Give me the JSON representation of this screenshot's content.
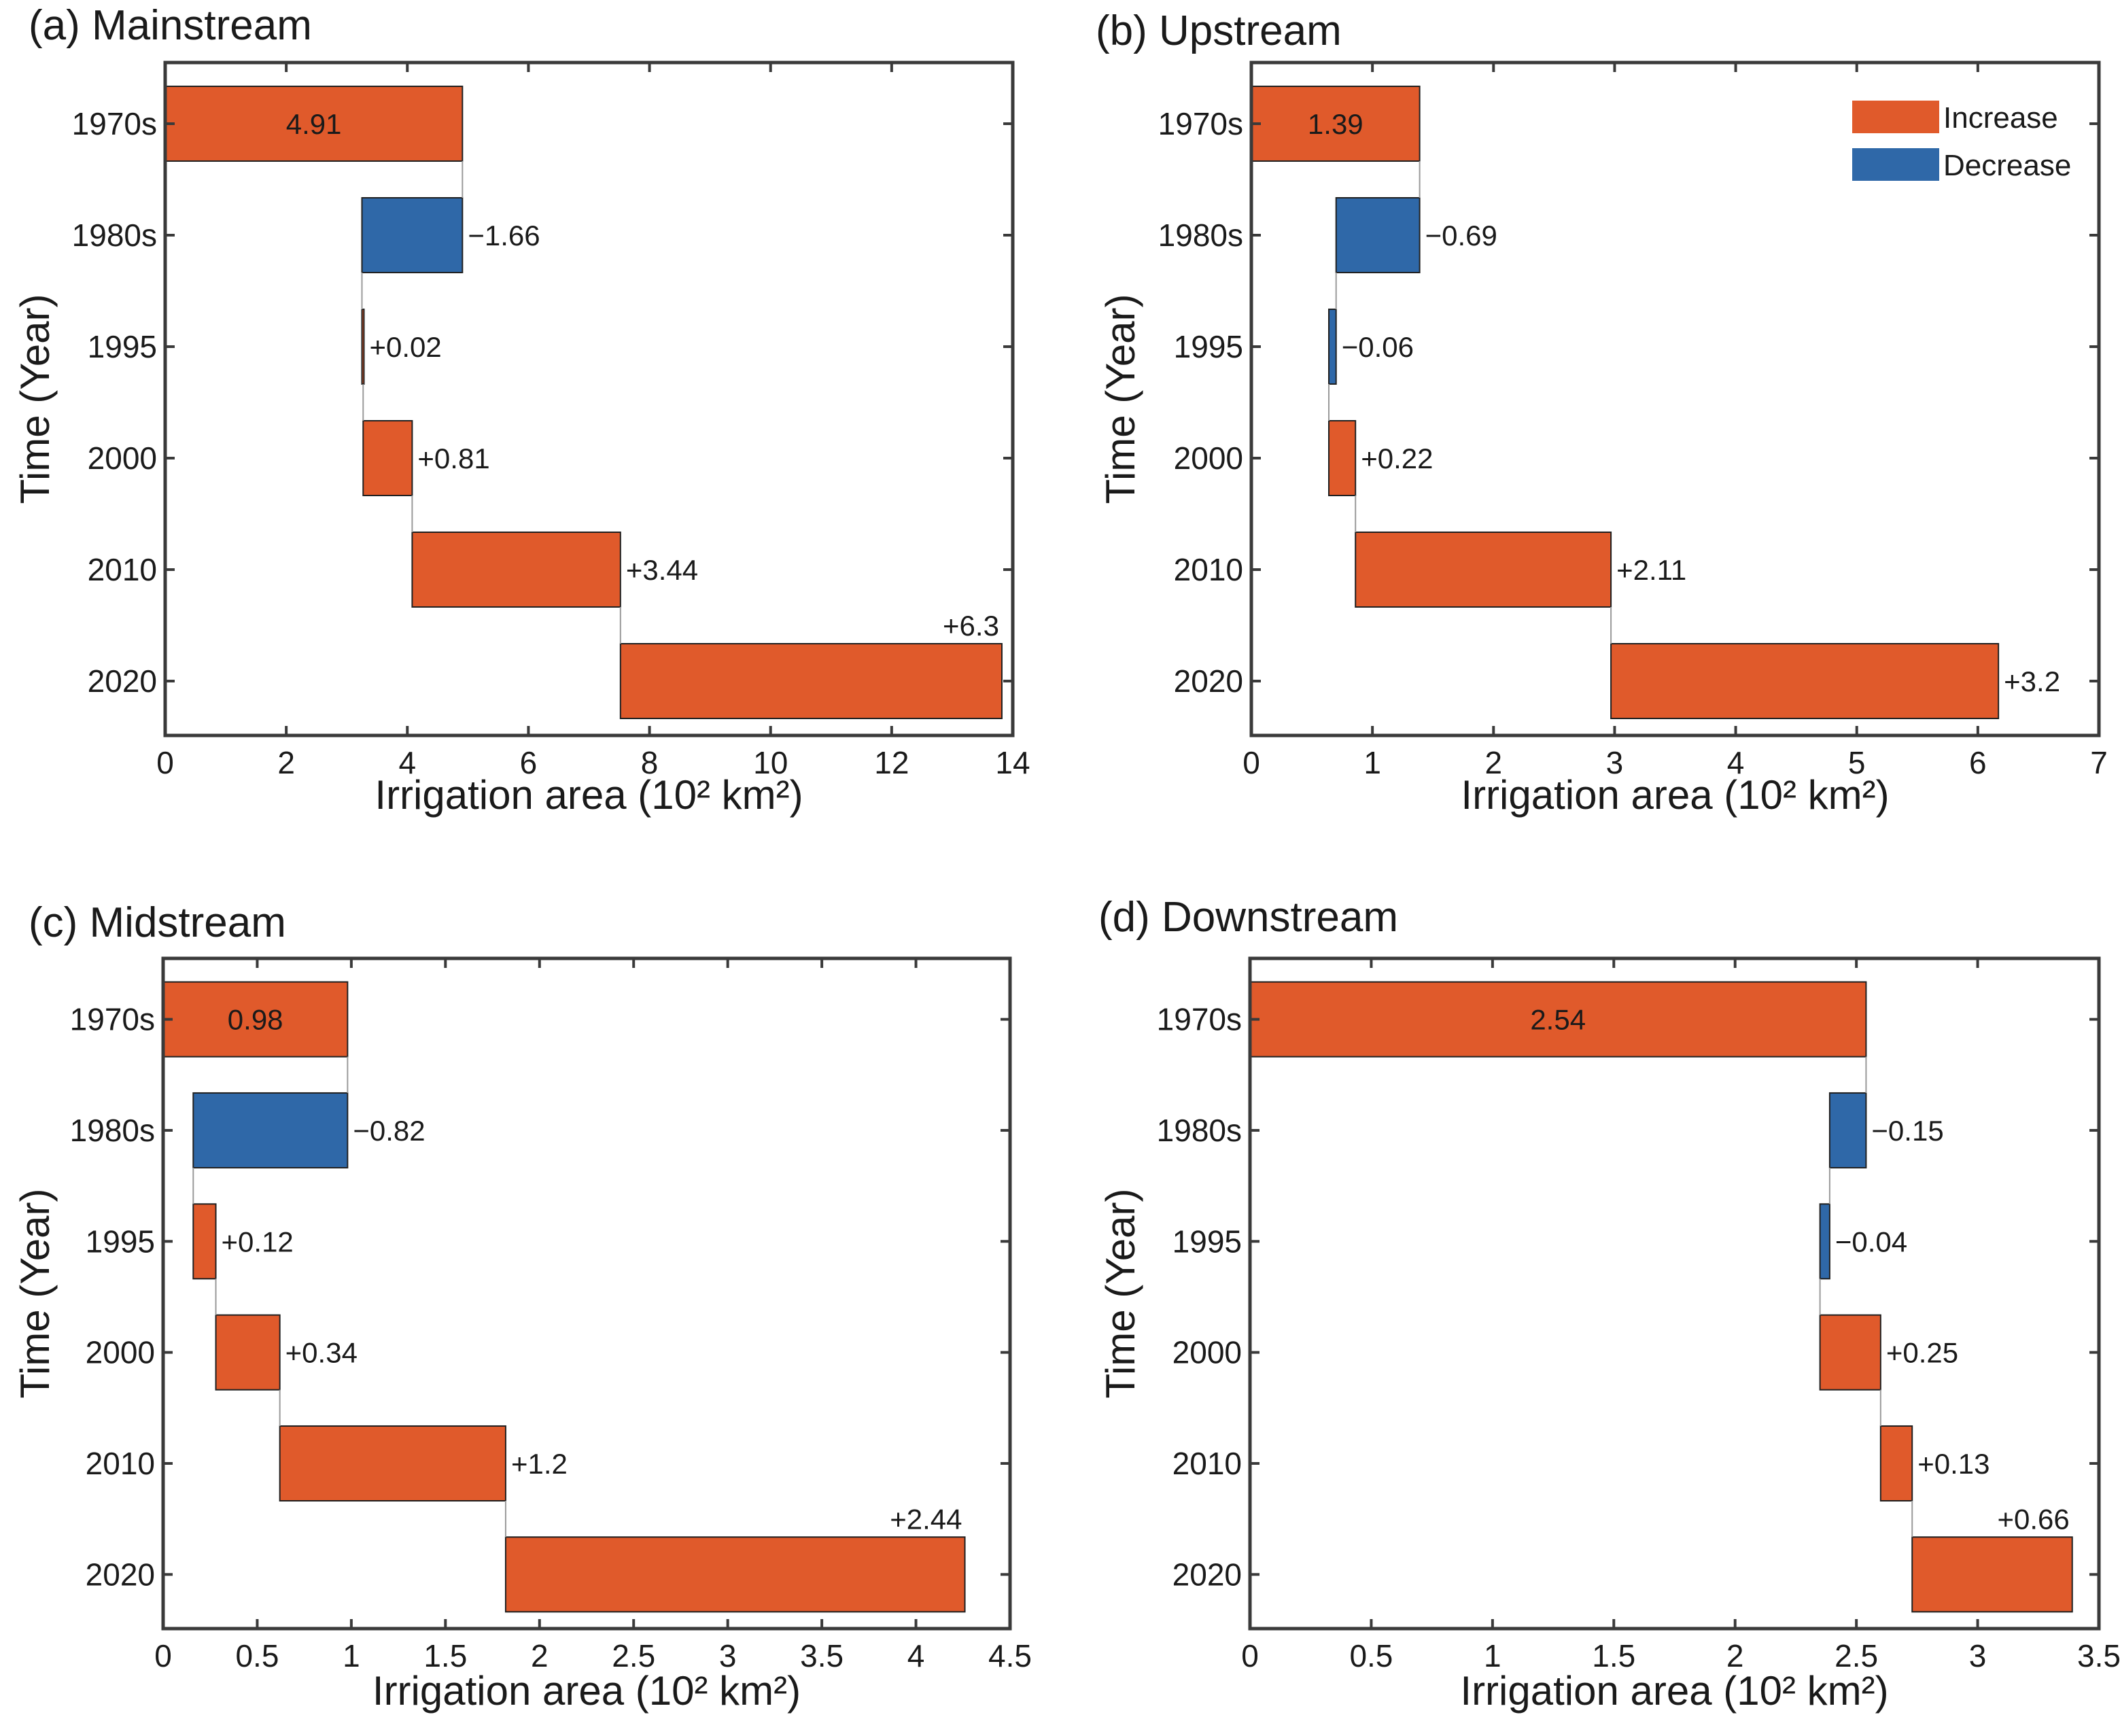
{
  "legend": {
    "items": [
      {
        "label": "Increase",
        "color": "#E05A2B"
      },
      {
        "label": "Decrease",
        "color": "#2F68A8"
      }
    ]
  },
  "chart_data": [
    {
      "type": "bar",
      "variant": "waterfall-horizontal",
      "title": "(a) Mainstream",
      "xlabel": "Irrigation area (10² km²)",
      "ylabel": "Time (Year)",
      "categories": [
        "1970s",
        "1980s",
        "1995",
        "2000",
        "2010",
        "2020"
      ],
      "values": [
        4.91,
        -1.66,
        0.02,
        0.81,
        3.44,
        6.3
      ],
      "value_labels": [
        "4.91",
        "−1.66",
        "+0.02",
        "+0.81",
        "+3.44",
        "+6.3"
      ],
      "xlim": [
        0,
        14
      ],
      "xticks": [
        0,
        2,
        4,
        6,
        8,
        10,
        12,
        14
      ],
      "xtick_labels": [
        "0",
        "2",
        "4",
        "6",
        "8",
        "10",
        "12",
        "14"
      ],
      "show_legend": false
    },
    {
      "type": "bar",
      "variant": "waterfall-horizontal",
      "title": "(b) Upstream",
      "xlabel": "Irrigation area (10² km²)",
      "ylabel": "Time (Year)",
      "categories": [
        "1970s",
        "1980s",
        "1995",
        "2000",
        "2010",
        "2020"
      ],
      "values": [
        1.39,
        -0.69,
        -0.06,
        0.22,
        2.11,
        3.2
      ],
      "value_labels": [
        "1.39",
        "−0.69",
        "−0.06",
        "+0.22",
        "+2.11",
        "+3.2"
      ],
      "xlim": [
        0,
        7
      ],
      "xticks": [
        0,
        1,
        2,
        3,
        4,
        5,
        6,
        7
      ],
      "xtick_labels": [
        "0",
        "1",
        "2",
        "3",
        "4",
        "5",
        "6",
        "7"
      ],
      "show_legend": true
    },
    {
      "type": "bar",
      "variant": "waterfall-horizontal",
      "title": "(c) Midstream",
      "xlabel": "Irrigation area (10² km²)",
      "ylabel": "Time (Year)",
      "categories": [
        "1970s",
        "1980s",
        "1995",
        "2000",
        "2010",
        "2020"
      ],
      "values": [
        0.98,
        -0.82,
        0.12,
        0.34,
        1.2,
        2.44
      ],
      "value_labels": [
        "0.98",
        "−0.82",
        "+0.12",
        "+0.34",
        "+1.2",
        "+2.44"
      ],
      "xlim": [
        0,
        4.5
      ],
      "xticks": [
        0,
        0.5,
        1,
        1.5,
        2,
        2.5,
        3,
        3.5,
        4,
        4.5
      ],
      "xtick_labels": [
        "0",
        "0.5",
        "1",
        "1.5",
        "2",
        "2.5",
        "3",
        "3.5",
        "4",
        "4.5"
      ],
      "show_legend": false
    },
    {
      "type": "bar",
      "variant": "waterfall-horizontal",
      "title": "(d) Downstream",
      "xlabel": "Irrigation area (10² km²)",
      "ylabel": "Time (Year)",
      "categories": [
        "1970s",
        "1980s",
        "1995",
        "2000",
        "2010",
        "2020"
      ],
      "values": [
        2.54,
        -0.15,
        -0.04,
        0.25,
        0.13,
        0.66
      ],
      "value_labels": [
        "2.54",
        "−0.15",
        "−0.04",
        "+0.25",
        "+0.13",
        "+0.66"
      ],
      "xlim": [
        0,
        3.5
      ],
      "xticks": [
        0,
        0.5,
        1,
        1.5,
        2,
        2.5,
        3,
        3.5
      ],
      "xtick_labels": [
        "0",
        "0.5",
        "1",
        "1.5",
        "2",
        "2.5",
        "3",
        "3.5"
      ],
      "show_legend": false
    }
  ]
}
